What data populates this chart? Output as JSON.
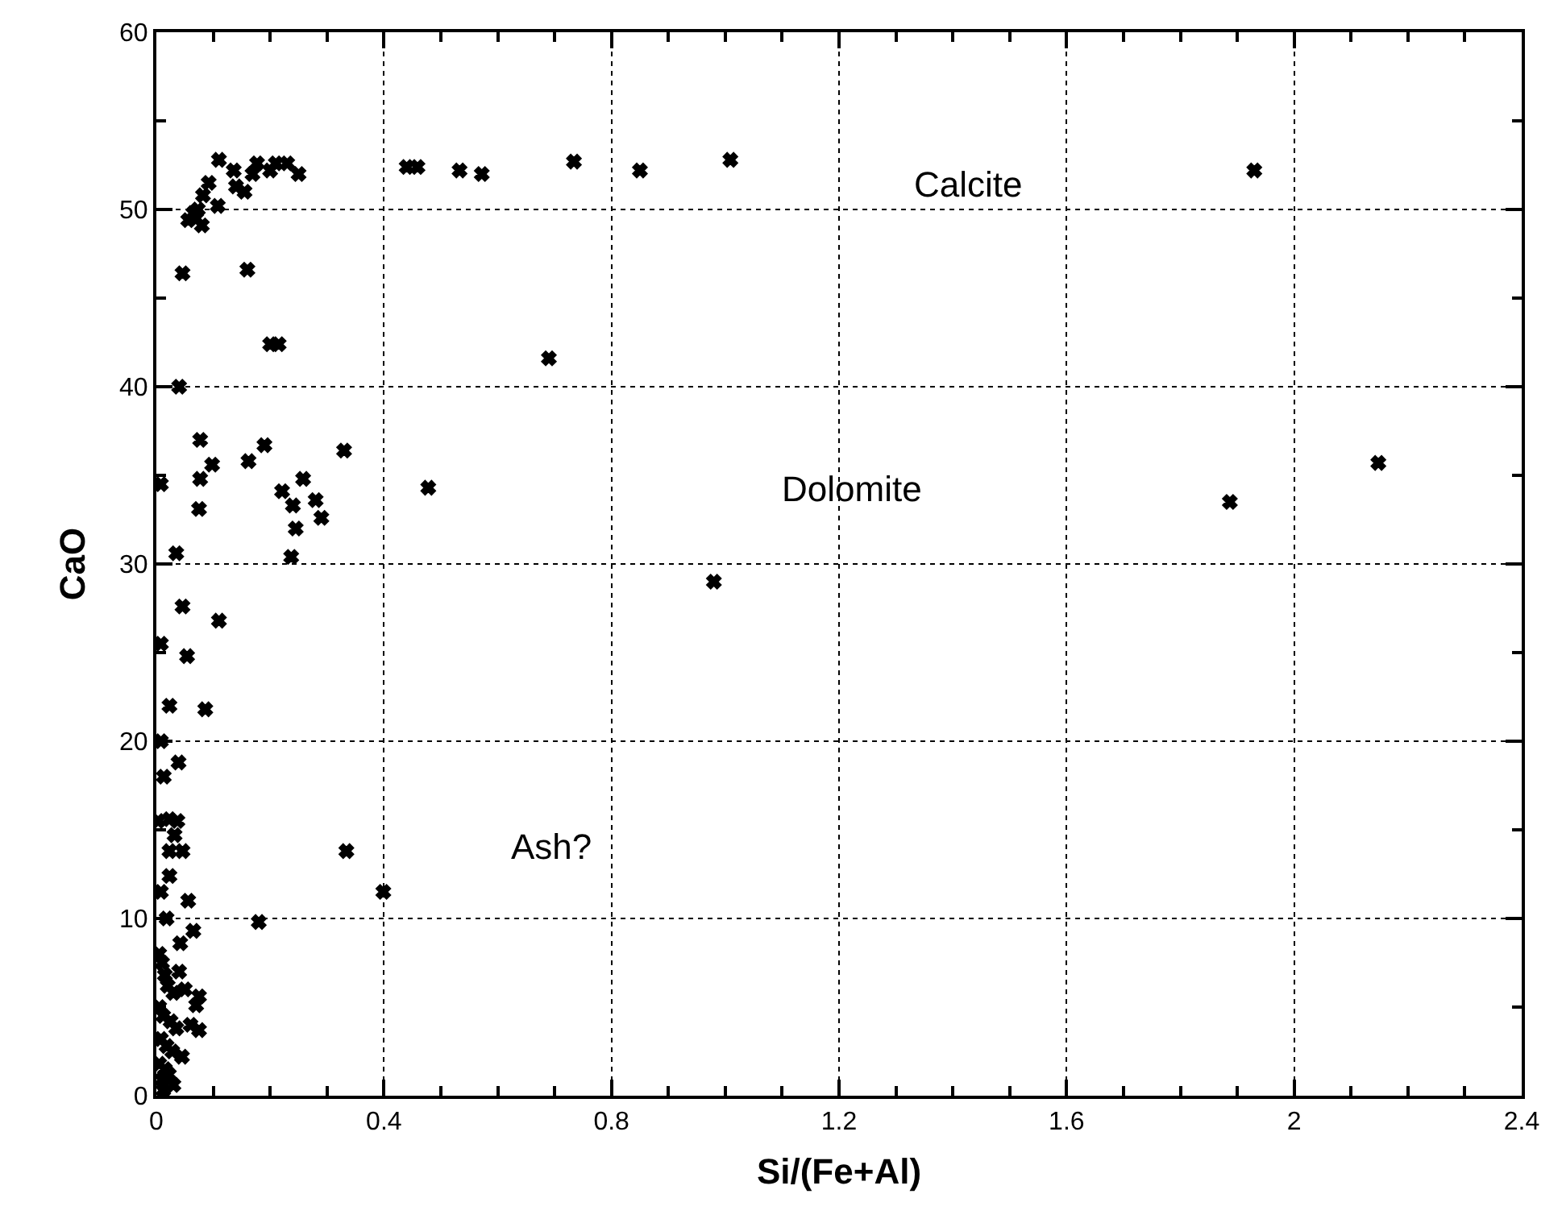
{
  "chart_data": {
    "type": "scatter",
    "xlabel": "Si/(Fe+Al)",
    "ylabel": "CaO",
    "xlim": [
      0,
      2.4
    ],
    "xticks": [
      0,
      0.4,
      0.8,
      1.2,
      1.6,
      2,
      2.4
    ],
    "ylim": [
      0,
      60
    ],
    "yticks": [
      0,
      10,
      20,
      30,
      40,
      50,
      60
    ],
    "grid": true,
    "marker": "cross",
    "annotations": [
      "Calcite",
      "Dolomite",
      "Ash?"
    ],
    "series": [
      {
        "color": "#000000",
        "x": [
          0.11,
          0.136,
          0.177,
          0.169,
          0.2,
          0.21,
          0.23,
          0.25,
          0.092,
          0.14,
          0.155,
          0.082,
          0.108,
          0.073,
          0.056,
          0.08,
          0.07,
          0.065,
          0.44,
          0.459,
          0.533,
          0.572,
          0.734,
          0.85,
          1.009,
          1.93,
          0.16,
          0.046,
          0.2,
          0.215,
          0.69,
          0.04,
          0.077,
          0.19,
          0.33,
          0.098,
          0.162,
          0.077,
          0.258,
          0.008,
          0.221,
          0.28,
          0.24,
          0.075,
          0.29,
          0.245,
          0.237,
          0.035,
          0.478,
          2.148,
          1.887,
          0.98,
          0.046,
          0.11,
          0.008,
          0.054,
          0.023,
          0.086,
          0.008,
          0.039,
          0.013,
          0.023,
          0.037,
          0.003,
          0.032,
          0.023,
          0.046,
          0.334,
          0.023,
          0.008,
          0.056,
          0.399,
          0.18,
          0.018,
          0.065,
          0.042,
          0.075,
          0.07,
          0.075,
          0.04,
          0.005,
          0.01,
          0.015,
          0.02,
          0.03,
          0.005,
          0.012,
          0.025,
          0.035,
          0.008,
          0.018,
          0.028,
          0.045,
          0.005,
          0.015,
          0.022,
          0.01,
          0.03,
          0.012,
          0.05,
          0.06
        ],
        "values": [
          52.8,
          52.2,
          52.6,
          52.0,
          52.2,
          52.6,
          52.6,
          52.0,
          51.5,
          51.3,
          51.0,
          50.8,
          50.2,
          50.0,
          49.4,
          49.1,
          49.5,
          49.8,
          52.4,
          52.4,
          52.2,
          52.0,
          52.7,
          52.2,
          52.8,
          52.2,
          46.6,
          46.4,
          42.4,
          42.4,
          41.6,
          40.0,
          37.0,
          36.7,
          36.4,
          35.6,
          35.8,
          34.8,
          34.8,
          34.5,
          34.1,
          33.6,
          33.3,
          33.1,
          32.6,
          32.0,
          30.4,
          30.6,
          34.3,
          35.7,
          33.5,
          29.0,
          27.6,
          26.8,
          25.5,
          24.8,
          22.0,
          21.8,
          20.0,
          18.8,
          18.0,
          15.6,
          15.5,
          15.5,
          14.7,
          13.8,
          13.8,
          13.8,
          12.4,
          11.5,
          11.0,
          11.5,
          9.8,
          10.0,
          9.3,
          8.6,
          5.6,
          5.1,
          3.7,
          7.0,
          8.0,
          7.5,
          6.8,
          6.2,
          5.8,
          5.0,
          4.5,
          4.2,
          3.8,
          3.2,
          2.8,
          2.5,
          2.2,
          1.8,
          1.5,
          1.2,
          0.9,
          0.6,
          0.3,
          6.0,
          4.0
        ]
      }
    ]
  }
}
